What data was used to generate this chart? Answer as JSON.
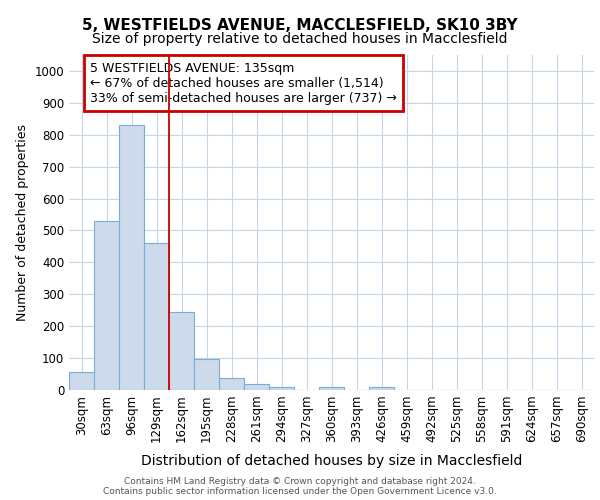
{
  "title_line1": "5, WESTFIELDS AVENUE, MACCLESFIELD, SK10 3BY",
  "title_line2": "Size of property relative to detached houses in Macclesfield",
  "xlabel": "Distribution of detached houses by size in Macclesfield",
  "ylabel": "Number of detached properties",
  "categories": [
    "30sqm",
    "63sqm",
    "96sqm",
    "129sqm",
    "162sqm",
    "195sqm",
    "228sqm",
    "261sqm",
    "294sqm",
    "327sqm",
    "360sqm",
    "393sqm",
    "426sqm",
    "459sqm",
    "492sqm",
    "525sqm",
    "558sqm",
    "591sqm",
    "624sqm",
    "657sqm",
    "690sqm"
  ],
  "values": [
    55,
    530,
    830,
    460,
    245,
    98,
    37,
    20,
    10,
    0,
    9,
    0,
    9,
    0,
    0,
    0,
    0,
    0,
    0,
    0,
    0
  ],
  "bar_color": "#ccdaeb",
  "bar_edge_color": "#7aaed0",
  "ylim": [
    0,
    1050
  ],
  "yticks": [
    0,
    100,
    200,
    300,
    400,
    500,
    600,
    700,
    800,
    900,
    1000
  ],
  "annotation_text_line1": "5 WESTFIELDS AVENUE: 135sqm",
  "annotation_text_line2": "← 67% of detached houses are smaller (1,514)",
  "annotation_text_line3": "33% of semi-detached houses are larger (737) →",
  "footer_line1": "Contains HM Land Registry data © Crown copyright and database right 2024.",
  "footer_line2": "Contains public sector information licensed under the Open Government Licence v3.0.",
  "plot_bg_color": "#ffffff",
  "grid_color": "#c8d4e8",
  "title1_fontsize": 11,
  "title2_fontsize": 10,
  "ylabel_fontsize": 9,
  "xlabel_fontsize": 10,
  "tick_fontsize": 8.5,
  "footer_fontsize": 6.5,
  "annot_fontsize": 9
}
